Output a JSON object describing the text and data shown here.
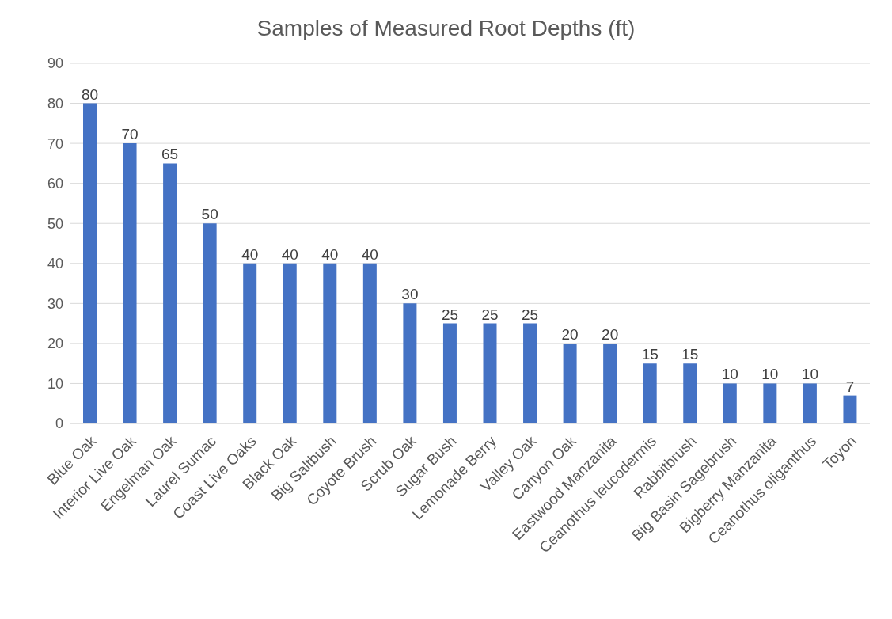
{
  "chart_data": {
    "type": "bar",
    "title": "Samples of Measured Root Depths (ft)",
    "categories": [
      "Blue Oak",
      "Interior Live Oak",
      "Engelman Oak",
      "Laurel Sumac",
      "Coast Live Oaks",
      "Black Oak",
      "Big Saltbush",
      "Coyote Brush",
      "Scrub Oak",
      "Sugar Bush",
      "Lemonade Berry",
      "Valley Oak",
      "Canyon Oak",
      "Eastwood Manzanita",
      "Ceanothus leucodermis",
      "Rabbitbrush",
      "Big Basin Sagebrush",
      "Bigberry Manzanita",
      "Ceanothus oliganthus",
      "Toyon"
    ],
    "values": [
      80,
      70,
      65,
      50,
      40,
      40,
      40,
      40,
      30,
      25,
      25,
      25,
      20,
      20,
      15,
      15,
      10,
      10,
      10,
      7
    ],
    "color": "#4472c4",
    "ylim": [
      0,
      90
    ],
    "yticks": [
      0,
      10,
      20,
      30,
      40,
      50,
      60,
      70,
      80,
      90
    ],
    "grid": "y",
    "data_labels": true
  }
}
